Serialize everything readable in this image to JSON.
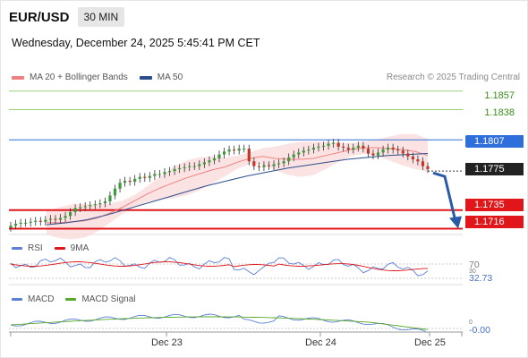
{
  "header": {
    "symbol": "EUR/USD",
    "timeframe": "30 MIN"
  },
  "datetime": "Wednesday, December 24, 2025 5:45:41 PM CET",
  "legend": {
    "ma20": "MA 20 + Bollinger Bands",
    "ma50": "MA 50",
    "credit": "Research © 2025 Trading Central",
    "colors": {
      "ma20": "#f08080",
      "ma50": "#2b4f8c"
    }
  },
  "levels": [
    {
      "label": "1.1857",
      "style": "green"
    },
    {
      "label": "1.1838",
      "style": "green"
    },
    {
      "label": "1.1807",
      "style": "blue"
    },
    {
      "label": "1.1775",
      "style": "dark"
    },
    {
      "label": "1.1735",
      "style": "red"
    },
    {
      "label": "1.1716",
      "style": "red"
    }
  ],
  "rsi": {
    "name": "RSI",
    "ma": "9MA",
    "level_70": "70",
    "level_30": "30",
    "value": "32.73"
  },
  "macd": {
    "name": "MACD",
    "signal": "MACD Signal",
    "zero": "0",
    "value": "-0.00"
  },
  "xaxis": [
    "Dec 23",
    "Dec 24",
    "Dec 25"
  ],
  "chart_data": {
    "type": "candlestick",
    "price_levels": [
      1.1857,
      1.1838,
      1.1807,
      1.1775,
      1.1735,
      1.1716
    ],
    "current_price": 1.1775,
    "ylim": [
      1.171,
      1.1865
    ],
    "close_series": [
      1.1719,
      1.1721,
      1.1722,
      1.1722,
      1.1723,
      1.1724,
      1.1723,
      1.1725,
      1.1726,
      1.1725,
      1.1727,
      1.1729,
      1.1733,
      1.1737,
      1.1738,
      1.1739,
      1.174,
      1.1741,
      1.1742,
      1.1744,
      1.175,
      1.1757,
      1.1763,
      1.1765,
      1.1764,
      1.1767,
      1.1769,
      1.1768,
      1.177,
      1.1772,
      1.1772,
      1.1774,
      1.1775,
      1.1777,
      1.1778,
      1.1779,
      1.178,
      1.178,
      1.1782,
      1.1784,
      1.1786,
      1.1788,
      1.1792,
      1.1795,
      1.1797,
      1.1796,
      1.1798,
      1.1798,
      1.1785,
      1.178,
      1.1779,
      1.1781,
      1.178,
      1.1782,
      1.1783,
      1.1785,
      1.1789,
      1.1792,
      1.1794,
      1.1796,
      1.1797,
      1.1799,
      1.18,
      1.1801,
      1.1803,
      1.1804,
      1.18,
      1.1799,
      1.1797,
      1.1799,
      1.1801,
      1.1798,
      1.1793,
      1.1791,
      1.1794,
      1.1797,
      1.1799,
      1.1797,
      1.1796,
      1.1793,
      1.179,
      1.1787,
      1.1785,
      1.178,
      1.1777
    ],
    "ma20": [
      1.1722,
      1.1722,
      1.1723,
      1.1724,
      1.1727,
      1.1732,
      1.1738,
      1.1745,
      1.1752,
      1.1758,
      1.1763,
      1.1768,
      1.1772,
      1.1776,
      1.1779,
      1.1784,
      1.1788,
      1.179,
      1.1788,
      1.1787,
      1.1787,
      1.1788,
      1.1791,
      1.1794,
      1.1797,
      1.1799,
      1.1799,
      1.1798,
      1.1797,
      1.1795,
      1.1791
    ],
    "ma50": [
      1.172,
      1.1722,
      1.1725,
      1.173,
      1.1736,
      1.1742,
      1.1748,
      1.1754,
      1.176,
      1.1765,
      1.177,
      1.1774,
      1.1778,
      1.1781,
      1.1784,
      1.1787,
      1.1789,
      1.1791,
      1.1792,
      1.1793
    ],
    "forecast": {
      "from": 1.1775,
      "to": 1.1716
    },
    "rsi_range": [
      0,
      100
    ],
    "x_labels": [
      "Dec 23",
      "Dec 24",
      "Dec 25"
    ]
  }
}
